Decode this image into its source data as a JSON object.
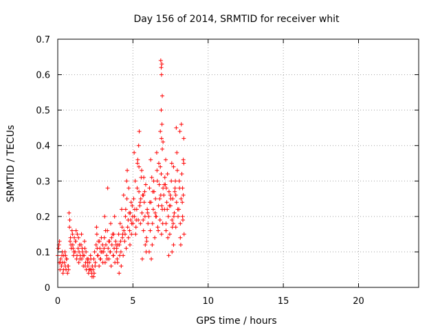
{
  "chart_data": {
    "type": "scatter",
    "title": "Day 156 of 2014, SRMTID for receiver whit",
    "xlabel": "GPS time / hours",
    "ylabel": "SRMTID / TECUs",
    "xlim": [
      0,
      24
    ],
    "ylim": [
      0,
      0.7
    ],
    "xticks": [
      0,
      5,
      10,
      15,
      20
    ],
    "xtick_labels": [
      "0",
      "5",
      "10",
      "15",
      "20"
    ],
    "yticks": [
      0,
      0.1,
      0.2,
      0.3,
      0.4,
      0.5,
      0.6,
      0.7
    ],
    "ytick_labels": [
      "0",
      "0.1",
      "0.2",
      "0.3",
      "0.4",
      "0.5",
      "0.6",
      "0.7"
    ],
    "grid": true,
    "marker": "+",
    "color": "#ff0000",
    "series": [
      {
        "name": "SRMTID",
        "x": [
          0.0,
          0.05,
          0.1,
          0.15,
          0.2,
          0.25,
          0.3,
          0.35,
          0.4,
          0.45,
          0.5,
          0.55,
          0.6,
          0.65,
          0.7,
          0.08,
          0.18,
          0.28,
          0.38,
          0.48,
          0.58,
          0.68,
          0.12,
          0.32,
          0.52,
          0.72,
          0.75,
          0.8,
          0.85,
          0.9,
          0.95,
          1.0,
          1.05,
          1.1,
          1.15,
          1.2,
          1.25,
          1.3,
          1.35,
          1.4,
          1.45,
          1.5,
          0.78,
          0.88,
          0.98,
          1.08,
          1.18,
          1.28,
          1.38,
          1.48,
          0.82,
          1.02,
          1.22,
          1.42,
          1.55,
          1.6,
          1.65,
          1.7,
          1.75,
          1.8,
          1.85,
          1.9,
          1.95,
          2.0,
          2.05,
          2.1,
          2.15,
          2.2,
          2.25,
          2.3,
          1.58,
          1.68,
          1.78,
          1.88,
          1.98,
          2.08,
          2.18,
          2.28,
          1.62,
          1.82,
          2.02,
          2.22,
          2.35,
          2.4,
          2.45,
          2.5,
          2.55,
          2.6,
          2.65,
          2.7,
          2.75,
          2.8,
          2.85,
          2.9,
          2.95,
          3.0,
          2.38,
          2.48,
          2.58,
          2.68,
          2.78,
          2.88,
          2.98,
          2.42,
          2.62,
          2.82,
          3.05,
          3.1,
          3.15,
          3.2,
          3.25,
          3.3,
          3.35,
          3.4,
          3.45,
          3.5,
          3.55,
          3.6,
          3.65,
          3.7,
          3.75,
          3.8,
          3.85,
          3.9,
          3.95,
          4.0,
          3.08,
          3.18,
          3.28,
          3.38,
          3.48,
          3.58,
          3.68,
          3.78,
          3.88,
          3.98,
          3.12,
          3.32,
          3.52,
          3.72,
          3.92,
          4.05,
          4.1,
          4.15,
          4.2,
          4.25,
          4.3,
          4.35,
          4.4,
          4.45,
          4.5,
          4.55,
          4.6,
          4.65,
          4.7,
          4.75,
          4.8,
          4.85,
          4.9,
          4.95,
          5.0,
          4.08,
          4.18,
          4.28,
          4.38,
          4.48,
          4.58,
          4.68,
          4.78,
          4.88,
          4.98,
          4.12,
          4.32,
          4.52,
          4.72,
          4.92,
          4.22,
          4.62,
          4.82,
          5.05,
          5.1,
          5.15,
          5.2,
          5.25,
          5.3,
          5.35,
          5.4,
          5.45,
          5.5,
          5.55,
          5.6,
          5.65,
          5.7,
          5.75,
          5.8,
          5.85,
          5.9,
          5.95,
          6.0,
          5.08,
          5.18,
          5.28,
          5.38,
          5.48,
          5.58,
          5.68,
          5.78,
          5.88,
          5.98,
          5.12,
          5.32,
          5.52,
          5.72,
          5.92,
          5.22,
          5.42,
          5.62,
          5.82,
          5.4,
          5.7,
          6.05,
          6.1,
          6.15,
          6.2,
          6.25,
          6.3,
          6.35,
          6.4,
          6.45,
          6.5,
          6.55,
          6.6,
          6.65,
          6.7,
          6.75,
          6.8,
          6.85,
          6.9,
          6.95,
          7.0,
          6.08,
          6.18,
          6.28,
          6.38,
          6.48,
          6.58,
          6.68,
          6.78,
          6.88,
          6.98,
          6.12,
          6.32,
          6.52,
          6.72,
          6.92,
          6.22,
          6.62,
          6.82,
          6.85,
          6.88,
          6.9,
          6.92,
          6.95,
          6.88,
          6.93,
          6.9,
          7.0,
          6.95,
          6.82,
          7.05,
          7.1,
          7.15,
          7.2,
          7.25,
          7.3,
          7.35,
          7.4,
          7.45,
          7.5,
          7.55,
          7.6,
          7.65,
          7.7,
          7.75,
          7.8,
          7.85,
          7.9,
          7.95,
          8.0,
          7.08,
          7.18,
          7.28,
          7.38,
          7.48,
          7.58,
          7.68,
          7.78,
          7.88,
          7.98,
          7.12,
          7.32,
          7.52,
          7.72,
          7.92,
          7.22,
          7.62,
          7.82,
          7.42,
          8.05,
          8.1,
          8.15,
          8.2,
          8.25,
          8.3,
          8.35,
          8.4,
          8.08,
          8.18,
          8.28,
          8.38,
          8.12,
          8.32,
          8.22,
          8.35,
          8.38,
          8.3,
          7.7,
          7.2,
          8.15,
          7.85,
          7.6
        ],
        "y": [
          0.09,
          0.11,
          0.07,
          0.05,
          0.08,
          0.06,
          0.1,
          0.04,
          0.09,
          0.07,
          0.06,
          0.05,
          0.08,
          0.04,
          0.06,
          0.12,
          0.07,
          0.09,
          0.05,
          0.1,
          0.08,
          0.06,
          0.13,
          0.07,
          0.09,
          0.05,
          0.21,
          0.19,
          0.14,
          0.11,
          0.16,
          0.12,
          0.09,
          0.14,
          0.1,
          0.13,
          0.08,
          0.15,
          0.11,
          0.07,
          0.12,
          0.09,
          0.17,
          0.12,
          0.15,
          0.1,
          0.13,
          0.09,
          0.14,
          0.08,
          0.13,
          0.11,
          0.16,
          0.1,
          0.12,
          0.08,
          0.1,
          0.06,
          0.09,
          0.11,
          0.07,
          0.05,
          0.08,
          0.06,
          0.04,
          0.07,
          0.05,
          0.08,
          0.04,
          0.06,
          0.15,
          0.09,
          0.13,
          0.1,
          0.07,
          0.05,
          0.09,
          0.03,
          0.11,
          0.06,
          0.08,
          0.05,
          0.05,
          0.08,
          0.1,
          0.07,
          0.12,
          0.15,
          0.09,
          0.13,
          0.06,
          0.11,
          0.08,
          0.14,
          0.1,
          0.07,
          0.03,
          0.06,
          0.17,
          0.09,
          0.13,
          0.1,
          0.12,
          0.04,
          0.11,
          0.08,
          0.1,
          0.14,
          0.07,
          0.12,
          0.09,
          0.16,
          0.11,
          0.08,
          0.13,
          0.1,
          0.06,
          0.12,
          0.15,
          0.09,
          0.11,
          0.07,
          0.13,
          0.1,
          0.08,
          0.12,
          0.11,
          0.16,
          0.08,
          0.13,
          0.1,
          0.14,
          0.09,
          0.2,
          0.12,
          0.07,
          0.2,
          0.28,
          0.18,
          0.15,
          0.11,
          0.15,
          0.12,
          0.18,
          0.1,
          0.22,
          0.14,
          0.09,
          0.16,
          0.13,
          0.2,
          0.11,
          0.25,
          0.17,
          0.14,
          0.21,
          0.12,
          0.19,
          0.15,
          0.23,
          0.18,
          0.04,
          0.13,
          0.17,
          0.26,
          0.15,
          0.3,
          0.19,
          0.16,
          0.24,
          0.2,
          0.09,
          0.15,
          0.22,
          0.28,
          0.18,
          0.06,
          0.33,
          0.21,
          0.25,
          0.2,
          0.3,
          0.17,
          0.22,
          0.35,
          0.19,
          0.27,
          0.23,
          0.18,
          0.31,
          0.21,
          0.26,
          0.16,
          0.24,
          0.2,
          0.29,
          0.14,
          0.22,
          0.18,
          0.38,
          0.15,
          0.28,
          0.4,
          0.24,
          0.33,
          0.19,
          0.27,
          0.1,
          0.21,
          0.22,
          0.36,
          0.25,
          0.31,
          0.13,
          0.19,
          0.44,
          0.08,
          0.12,
          0.34,
          0.26,
          0.2,
          0.28,
          0.16,
          0.24,
          0.31,
          0.18,
          0.22,
          0.27,
          0.14,
          0.25,
          0.2,
          0.33,
          0.17,
          0.23,
          0.29,
          0.19,
          0.26,
          0.15,
          0.22,
          0.28,
          0.1,
          0.36,
          0.12,
          0.3,
          0.21,
          0.38,
          0.16,
          0.25,
          0.32,
          0.18,
          0.24,
          0.27,
          0.2,
          0.35,
          0.23,
          0.08,
          0.3,
          0.34,
          0.64,
          0.62,
          0.6,
          0.63,
          0.54,
          0.5,
          0.46,
          0.42,
          0.41,
          0.39,
          0.44,
          0.26,
          0.22,
          0.29,
          0.18,
          0.24,
          0.32,
          0.2,
          0.27,
          0.15,
          0.23,
          0.3,
          0.19,
          0.25,
          0.12,
          0.21,
          0.28,
          0.17,
          0.24,
          0.33,
          0.2,
          0.29,
          0.36,
          0.22,
          0.09,
          0.26,
          0.35,
          0.18,
          0.27,
          0.45,
          0.22,
          0.31,
          0.14,
          0.25,
          0.2,
          0.38,
          0.28,
          0.17,
          0.3,
          0.23,
          0.22,
          0.28,
          0.18,
          0.25,
          0.32,
          0.2,
          0.26,
          0.15,
          0.3,
          0.12,
          0.24,
          0.35,
          0.44,
          0.19,
          0.46,
          0.36,
          0.42,
          0.28,
          0.34,
          0.16,
          0.14,
          0.26,
          0.1
        ]
      }
    ]
  }
}
